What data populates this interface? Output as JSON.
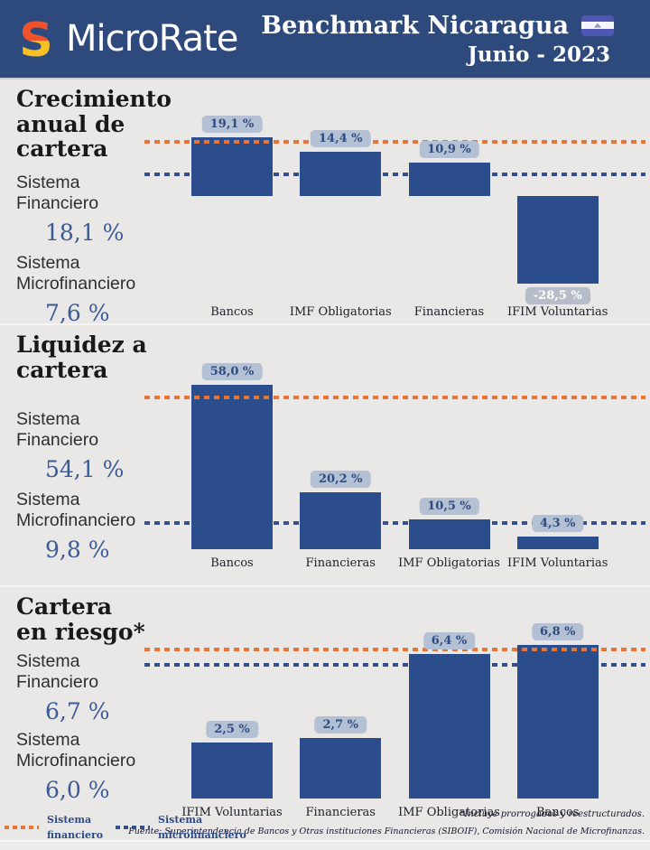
{
  "header": {
    "brand": "MicroRate",
    "title": "Benchmark Nicaragua",
    "subtitle": "Junio - 2023"
  },
  "sections": [
    {
      "title": "Crecimiento anual de cartera",
      "title_lines": [
        "Crecimiento",
        "anual de",
        "cartera"
      ],
      "sf_label": "Sistema Financiero",
      "sf_value": "18,1 %",
      "smf_label": "Sistema Microfinanciero",
      "smf_value": "7,6 %"
    },
    {
      "title": "Liquidez a cartera",
      "title_lines": [
        "Liquidez a",
        "cartera"
      ],
      "sf_label": "Sistema Financiero",
      "sf_value": "54,1 %",
      "smf_label": "Sistema Microfinanciero",
      "smf_value": "9,8 %"
    },
    {
      "title": "Cartera en riesgo*",
      "title_lines": [
        "Cartera",
        "en riesgo*"
      ],
      "sf_label": "Sistema Financiero",
      "sf_value": "6,7 %",
      "smf_label": "Sistema Microfinanciero",
      "smf_value": "6,0 %"
    }
  ],
  "chart_data": [
    {
      "type": "bar",
      "title": "Crecimiento anual de cartera",
      "unit": "%",
      "categories": [
        "Bancos",
        "IMF Obligatorias",
        "Financieras",
        "IFIM Voluntarias"
      ],
      "values": [
        19.1,
        14.4,
        10.9,
        -28.5
      ],
      "data_labels": [
        "19,1 %",
        "14,4 %",
        "10,9 %",
        "-28,5 %"
      ],
      "reference_lines": [
        {
          "name": "Sistema Financiero",
          "value": 18.1,
          "color": "#e87435"
        },
        {
          "name": "Sistema Microfinanciero",
          "value": 7.6,
          "color": "#33508c"
        }
      ],
      "legend_position": "bottom",
      "grid": false
    },
    {
      "type": "bar",
      "title": "Liquidez a cartera",
      "unit": "%",
      "categories": [
        "Bancos",
        "Financieras",
        "IMF Obligatorias",
        "IFIM Voluntarias"
      ],
      "values": [
        58.0,
        20.2,
        10.5,
        4.3
      ],
      "data_labels": [
        "58,0 %",
        "20,2 %",
        "10,5 %",
        "4,3 %"
      ],
      "reference_lines": [
        {
          "name": "Sistema Financiero",
          "value": 54.1,
          "color": "#e87435"
        },
        {
          "name": "Sistema Microfinanciero",
          "value": 9.8,
          "color": "#33508c"
        }
      ],
      "legend_position": "bottom",
      "grid": false
    },
    {
      "type": "bar",
      "title": "Cartera en riesgo*",
      "unit": "%",
      "categories": [
        "IFIM Voluntarias",
        "Financieras",
        "IMF Obligatorias",
        "Bancos"
      ],
      "values": [
        2.5,
        2.7,
        6.4,
        6.8
      ],
      "data_labels": [
        "2,5 %",
        "2,7 %",
        "6,4 %",
        "6,8 %"
      ],
      "reference_lines": [
        {
          "name": "Sistema Financiero",
          "value": 6.7,
          "color": "#e87435"
        },
        {
          "name": "Sistema Microfinanciero",
          "value": 6.0,
          "color": "#33508c"
        }
      ],
      "legend_position": "bottom",
      "grid": false
    }
  ],
  "footer": {
    "legend": [
      {
        "label": "Sistema financiero",
        "color": "#e87435"
      },
      {
        "label": "Sistema microfinanciero",
        "color": "#33508c"
      }
    ],
    "note": "*Incluye prorrogados y reestructurados.",
    "source": "Fuente: Superintendencia de Bancos y Otras instituciones Financieras (SIBOIF), Comisión Nacional de Microfinanzas."
  },
  "colors": {
    "header_bg": "#2e4a7c",
    "page_bg": "#e9e8e6",
    "bar": "#2c4d8c",
    "badge_bg": "#b4c0d3",
    "badge_text": "#2f4c80",
    "badge_neg_bg": "#b6bcc8",
    "badge_neg_text": "#ffffff",
    "line_financiero": "#e87435",
    "line_microfinanciero": "#33508c",
    "value_text": "#3b5a96",
    "title_text": "#191919",
    "label_text": "#2e2e2e",
    "logo_orange": "#f0532a",
    "logo_yellow": "#f8c022"
  }
}
